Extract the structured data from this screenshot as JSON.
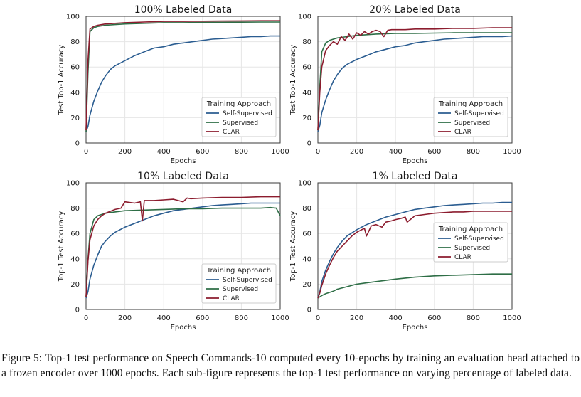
{
  "caption": "Figure 5: Top-1 test performance on Speech Commands-10 computed every 10-epochs by training an evaluation head attached to a frozen encoder over 1000 epochs. Each sub-figure represents the top-1 test performance on varying percentage of labeled data.",
  "colors": {
    "self_supervised": "#2b5d91",
    "supervised": "#2e6e46",
    "clar": "#8c1c2e",
    "grid": "#e6e6e6"
  },
  "chart_data": [
    {
      "type": "line",
      "title": "100% Labeled Data",
      "xlabel": "Epochs",
      "ylabel": "Test Top-1 Accuracy",
      "xlim": [
        0,
        1000
      ],
      "ylim": [
        0,
        100
      ],
      "xticks": [
        0,
        200,
        400,
        600,
        800,
        1000
      ],
      "yticks": [
        0,
        20,
        40,
        60,
        80,
        100
      ],
      "grid": true,
      "legend": {
        "title": "Training Approach",
        "position": "lower-right"
      },
      "series": [
        {
          "name": "Self-Supervised",
          "x": [
            0,
            10,
            20,
            40,
            60,
            80,
            100,
            125,
            150,
            200,
            250,
            300,
            350,
            400,
            450,
            500,
            550,
            600,
            650,
            700,
            750,
            800,
            850,
            900,
            950,
            1000
          ],
          "values": [
            9,
            13,
            22,
            33,
            41,
            48,
            53,
            58,
            61,
            65,
            69,
            72,
            75,
            76,
            78,
            79,
            80,
            81,
            82,
            82.5,
            83,
            83.5,
            84,
            84,
            84.5,
            84.5
          ]
        },
        {
          "name": "Supervised",
          "x": [
            0,
            10,
            20,
            40,
            60,
            100,
            150,
            200,
            300,
            400,
            500,
            600,
            700,
            800,
            900,
            1000
          ],
          "values": [
            9,
            55,
            88,
            91,
            92,
            93,
            93.5,
            94,
            94.5,
            95,
            95,
            95.2,
            95.3,
            95.4,
            95.5,
            95.5
          ]
        },
        {
          "name": "CLAR",
          "x": [
            0,
            10,
            20,
            40,
            60,
            100,
            150,
            200,
            300,
            400,
            500,
            600,
            700,
            800,
            900,
            1000
          ],
          "values": [
            10,
            65,
            90,
            92,
            93,
            94,
            94.5,
            95,
            95.5,
            96,
            96,
            96.2,
            96.3,
            96.4,
            96.5,
            96.5
          ]
        }
      ]
    },
    {
      "type": "line",
      "title": "20% Labeled Data",
      "xlabel": "Epochs",
      "ylabel": "Test Top-1 Accuracy",
      "xlim": [
        0,
        1000
      ],
      "ylim": [
        0,
        100
      ],
      "xticks": [
        0,
        200,
        400,
        600,
        800,
        1000
      ],
      "yticks": [
        0,
        20,
        40,
        60,
        80,
        100
      ],
      "grid": true,
      "legend": {
        "title": "Training Approach",
        "position": "lower-right"
      },
      "series": [
        {
          "name": "Self-Supervised",
          "x": [
            0,
            10,
            20,
            40,
            60,
            80,
            100,
            125,
            150,
            200,
            250,
            300,
            350,
            400,
            450,
            500,
            550,
            600,
            650,
            700,
            750,
            800,
            850,
            900,
            950,
            1000
          ],
          "values": [
            9,
            14,
            24,
            34,
            42,
            49,
            54,
            59,
            62,
            66,
            69,
            72,
            74,
            76,
            77,
            79,
            80,
            81,
            82,
            82.5,
            83,
            83.5,
            84,
            84,
            84,
            84.5
          ]
        },
        {
          "name": "Supervised",
          "x": [
            0,
            10,
            20,
            40,
            60,
            80,
            100,
            150,
            200,
            300,
            400,
            500,
            600,
            700,
            800,
            900,
            1000
          ],
          "values": [
            10,
            45,
            72,
            79,
            81,
            82,
            83,
            84,
            85,
            86,
            86.5,
            86.5,
            86.8,
            87,
            87,
            87,
            87
          ]
        },
        {
          "name": "CLAR",
          "x": [
            0,
            10,
            20,
            40,
            60,
            80,
            100,
            120,
            140,
            160,
            180,
            200,
            220,
            240,
            260,
            280,
            300,
            320,
            340,
            360,
            380,
            400,
            450,
            500,
            550,
            600,
            700,
            800,
            900,
            1000
          ],
          "values": [
            10,
            40,
            60,
            73,
            77,
            80,
            78,
            84,
            81,
            86,
            82,
            87,
            85,
            88,
            86,
            88,
            89,
            88,
            84,
            89,
            89.5,
            89.5,
            89.5,
            90,
            90,
            90,
            90.5,
            90.5,
            91,
            91
          ]
        }
      ]
    },
    {
      "type": "line",
      "title": "10% Labeled Data",
      "xlabel": "Epochs",
      "ylabel": "Top-1 Test Accuracy",
      "xlim": [
        0,
        1000
      ],
      "ylim": [
        0,
        100
      ],
      "xticks": [
        0,
        200,
        400,
        600,
        800,
        1000
      ],
      "yticks": [
        0,
        20,
        40,
        60,
        80,
        100
      ],
      "grid": true,
      "legend": {
        "title": "Training Approach",
        "position": "lower-right"
      },
      "series": [
        {
          "name": "Self-Supervised",
          "x": [
            0,
            10,
            20,
            40,
            60,
            80,
            100,
            125,
            150,
            200,
            250,
            300,
            350,
            400,
            450,
            500,
            550,
            600,
            650,
            700,
            750,
            800,
            850,
            900,
            950,
            1000
          ],
          "values": [
            9,
            14,
            24,
            35,
            43,
            50,
            54,
            58,
            61,
            65,
            68,
            71,
            74,
            76,
            78,
            79,
            80,
            81,
            82,
            82.5,
            83,
            83.5,
            84,
            84,
            84,
            84
          ]
        },
        {
          "name": "Supervised",
          "x": [
            0,
            10,
            20,
            40,
            60,
            80,
            100,
            150,
            200,
            300,
            400,
            500,
            600,
            700,
            800,
            900,
            950,
            980,
            1000
          ],
          "values": [
            10,
            40,
            60,
            71,
            74,
            75,
            76,
            77,
            78,
            78.5,
            79,
            79.5,
            79.5,
            80,
            80,
            80,
            80.5,
            80,
            74
          ]
        },
        {
          "name": "CLAR",
          "x": [
            0,
            10,
            20,
            40,
            60,
            80,
            100,
            150,
            180,
            200,
            250,
            280,
            290,
            300,
            350,
            400,
            450,
            500,
            520,
            540,
            600,
            700,
            800,
            900,
            1000
          ],
          "values": [
            10,
            38,
            55,
            66,
            71,
            74,
            76,
            79,
            80,
            85,
            84,
            85,
            70,
            86,
            86,
            86.5,
            87,
            85,
            88,
            87.5,
            88,
            88.5,
            88.5,
            89,
            89
          ]
        }
      ]
    },
    {
      "type": "line",
      "title": "1% Labeled Data",
      "xlabel": "Epochs",
      "ylabel": "Top-1 Test Accuracy",
      "xlim": [
        0,
        1000
      ],
      "ylim": [
        0,
        100
      ],
      "xticks": [
        0,
        200,
        400,
        600,
        800,
        1000
      ],
      "yticks": [
        0,
        20,
        40,
        60,
        80,
        100
      ],
      "grid": true,
      "legend": {
        "title": "Training Approach",
        "position": "center-right"
      },
      "series": [
        {
          "name": "Self-Supervised",
          "x": [
            0,
            10,
            20,
            40,
            60,
            80,
            100,
            125,
            150,
            200,
            250,
            300,
            350,
            400,
            450,
            500,
            550,
            600,
            650,
            700,
            750,
            800,
            850,
            900,
            950,
            1000
          ],
          "values": [
            9,
            14,
            22,
            31,
            38,
            44,
            49,
            54,
            58,
            63,
            67,
            70,
            73,
            75,
            77,
            79,
            80,
            81,
            82,
            82.5,
            83,
            83.5,
            84,
            84,
            84.5,
            84.5
          ]
        },
        {
          "name": "Supervised",
          "x": [
            0,
            20,
            40,
            60,
            80,
            100,
            150,
            200,
            250,
            300,
            400,
            500,
            600,
            700,
            800,
            900,
            1000
          ],
          "values": [
            9,
            11,
            12.5,
            13.5,
            14.5,
            16,
            18,
            20,
            21,
            22,
            24,
            25.5,
            26.5,
            27,
            27.5,
            28,
            28
          ]
        },
        {
          "name": "CLAR",
          "x": [
            0,
            10,
            20,
            40,
            60,
            80,
            100,
            125,
            150,
            175,
            200,
            225,
            240,
            250,
            275,
            300,
            330,
            350,
            380,
            400,
            430,
            450,
            460,
            500,
            550,
            600,
            650,
            700,
            750,
            800,
            900,
            1000
          ],
          "values": [
            9,
            13,
            19,
            28,
            35,
            41,
            46,
            50,
            54,
            58,
            61,
            63,
            64,
            58,
            66,
            67,
            65,
            69,
            70,
            71,
            72,
            73,
            69,
            74,
            75,
            76,
            76.5,
            77,
            77,
            77.5,
            77.5,
            77.5
          ]
        }
      ]
    }
  ]
}
